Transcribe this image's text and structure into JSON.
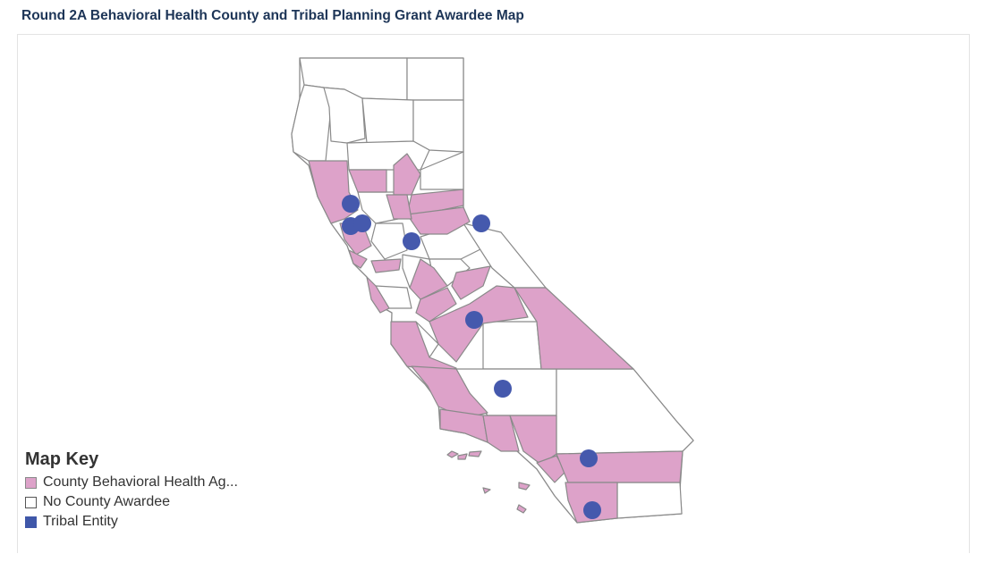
{
  "header": {
    "title": "Round 2A Behavioral Health County and Tribal Planning Grant Awardee Map"
  },
  "legend": {
    "title": "Map Key",
    "items": [
      {
        "label": "County Behavioral Health Ag...",
        "color": "#dda2c9",
        "border": "#888888"
      },
      {
        "label": "No County Awardee",
        "color": "#ffffff",
        "border": "#555555"
      },
      {
        "label": "Tribal Entity",
        "color": "#3f57a9",
        "border": "#3f57a9"
      }
    ]
  },
  "colors": {
    "awardee_fill": "#dda2c9",
    "no_awardee_fill": "#ffffff",
    "county_border": "#8a8a8a",
    "tribal_marker": "#4559ad"
  },
  "map": {
    "region": "California counties",
    "tribal_entity_markers": 9
  }
}
